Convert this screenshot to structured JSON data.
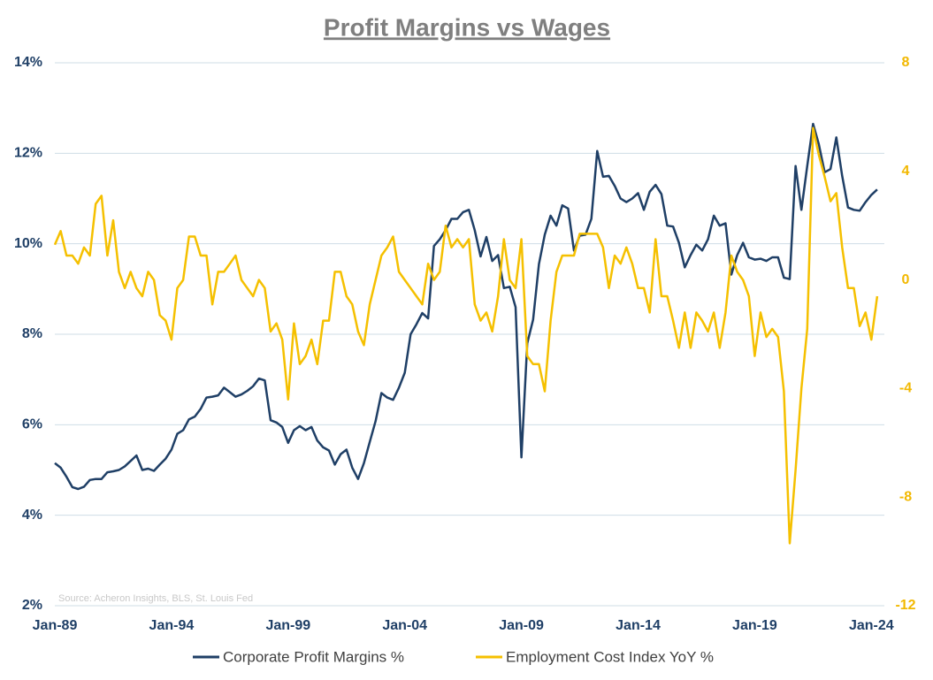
{
  "chart_data": {
    "type": "line",
    "title": "Profit Margins vs Wages",
    "source": "Source: Acheron Insights, BLS, St. Louis Fed",
    "categories": [
      "Jan-89",
      null,
      null,
      null,
      null,
      null,
      null,
      null,
      null,
      null,
      null,
      null,
      null,
      null,
      null,
      null,
      null,
      null,
      null,
      null,
      "Jan-94",
      null,
      null,
      null,
      null,
      null,
      null,
      null,
      null,
      null,
      null,
      null,
      null,
      null,
      null,
      null,
      null,
      null,
      null,
      null,
      "Jan-99",
      null,
      null,
      null,
      null,
      null,
      null,
      null,
      null,
      null,
      null,
      null,
      null,
      null,
      null,
      null,
      null,
      null,
      null,
      null,
      "Jan-04",
      null,
      null,
      null,
      null,
      null,
      null,
      null,
      null,
      null,
      null,
      null,
      null,
      null,
      null,
      null,
      null,
      null,
      null,
      null,
      "Jan-09",
      null,
      null,
      null,
      null,
      null,
      null,
      null,
      null,
      null,
      null,
      null,
      null,
      null,
      null,
      null,
      null,
      null,
      null,
      null,
      "Jan-14",
      null,
      null,
      null,
      null,
      null,
      null,
      null,
      null,
      null,
      null,
      null,
      null,
      null,
      null,
      null,
      null,
      null,
      null,
      null,
      "Jan-19",
      null,
      null,
      null,
      null,
      null,
      null,
      null,
      null,
      null,
      null,
      null,
      null,
      null,
      null,
      null,
      null,
      null,
      null,
      null,
      "Jan-24",
      null
    ],
    "series": [
      {
        "name": "Corporate Profit Margins %",
        "color": "#1f3f66",
        "axis": "y",
        "values": [
          5.15,
          5.05,
          4.85,
          4.62,
          4.58,
          4.63,
          4.78,
          4.8,
          4.8,
          4.95,
          4.97,
          5.0,
          5.08,
          5.2,
          5.32,
          5.0,
          5.03,
          4.98,
          5.12,
          5.25,
          5.45,
          5.8,
          5.88,
          6.12,
          6.18,
          6.35,
          6.6,
          6.62,
          6.65,
          6.82,
          6.72,
          6.62,
          6.67,
          6.75,
          6.85,
          7.02,
          6.98,
          6.1,
          6.05,
          5.95,
          5.6,
          5.88,
          5.97,
          5.88,
          5.95,
          5.65,
          5.5,
          5.43,
          5.12,
          5.35,
          5.45,
          5.05,
          4.8,
          5.15,
          5.62,
          6.08,
          6.7,
          6.6,
          6.55,
          6.82,
          7.15,
          8.0,
          8.22,
          8.47,
          8.35,
          9.95,
          10.1,
          10.3,
          10.55,
          10.55,
          10.7,
          10.75,
          10.3,
          9.72,
          10.15,
          9.62,
          9.75,
          9.02,
          9.05,
          8.6,
          5.28,
          7.8,
          8.32,
          9.55,
          10.2,
          10.62,
          10.4,
          10.85,
          10.78,
          9.85,
          10.18,
          10.2,
          10.55,
          12.05,
          11.48,
          11.5,
          11.28,
          11.0,
          10.92,
          11.0,
          11.12,
          10.75,
          11.15,
          11.3,
          11.1,
          10.4,
          10.38,
          10.02,
          9.48,
          9.75,
          9.98,
          9.85,
          10.1,
          10.62,
          10.4,
          10.45,
          9.32,
          9.75,
          10.02,
          9.7,
          9.65,
          9.67,
          9.62,
          9.7,
          9.7,
          9.25,
          9.22,
          11.72,
          10.75,
          11.72,
          12.65,
          12.2,
          11.58,
          11.65,
          12.35,
          11.5,
          10.8,
          10.75,
          10.73,
          10.92,
          11.08,
          11.2
        ]
      },
      {
        "name": "Employment Cost Index YoY %",
        "color": "#f5c000",
        "axis": "y2",
        "values": [
          1.3,
          1.8,
          0.9,
          0.9,
          0.6,
          1.2,
          0.9,
          2.8,
          3.1,
          0.9,
          2.2,
          0.3,
          -0.3,
          0.3,
          -0.3,
          -0.6,
          0.3,
          0.0,
          -1.3,
          -1.5,
          -2.2,
          -0.3,
          0.0,
          1.6,
          1.6,
          0.9,
          0.9,
          -0.9,
          0.3,
          0.3,
          0.6,
          0.9,
          0.0,
          -0.3,
          -0.6,
          0.0,
          -0.3,
          -1.9,
          -1.6,
          -2.2,
          -4.4,
          -1.6,
          -3.1,
          -2.8,
          -2.2,
          -3.1,
          -1.5,
          -1.5,
          0.3,
          0.3,
          -0.6,
          -0.9,
          -1.9,
          -2.4,
          -0.9,
          0.0,
          0.9,
          1.2,
          1.6,
          0.3,
          0.0,
          -0.3,
          -0.6,
          -0.9,
          0.6,
          0.0,
          0.3,
          2.0,
          1.2,
          1.5,
          1.2,
          1.5,
          -0.9,
          -1.5,
          -1.2,
          -1.9,
          -0.6,
          1.5,
          0.0,
          -0.3,
          1.5,
          -2.8,
          -3.1,
          -3.1,
          -4.1,
          -1.5,
          0.3,
          0.9,
          0.9,
          0.9,
          1.7,
          1.7,
          1.7,
          1.7,
          1.2,
          -0.3,
          0.9,
          0.6,
          1.2,
          0.6,
          -0.3,
          -0.3,
          -1.2,
          1.5,
          -0.6,
          -0.6,
          -1.5,
          -2.5,
          -1.2,
          -2.5,
          -1.2,
          -1.5,
          -1.9,
          -1.2,
          -2.5,
          -1.2,
          0.9,
          0.3,
          0.0,
          -0.6,
          -2.8,
          -1.2,
          -2.1,
          -1.8,
          -2.1,
          -4.1,
          -9.7,
          -7.0,
          -4.0,
          -1.8,
          5.6,
          4.6,
          3.8,
          2.9,
          3.2,
          1.2,
          -0.3,
          -0.3,
          -1.7,
          -1.2,
          -2.2,
          -0.6
        ]
      }
    ],
    "ylim": [
      2,
      14
    ],
    "yticks": [
      {
        "value": 2,
        "label": "2%"
      },
      {
        "value": 4,
        "label": "4%"
      },
      {
        "value": 6,
        "label": "6%"
      },
      {
        "value": 8,
        "label": "8%"
      },
      {
        "value": 10,
        "label": "10%"
      },
      {
        "value": 12,
        "label": "12%"
      },
      {
        "value": 14,
        "label": "14%"
      }
    ],
    "y2lim": [
      -12,
      8
    ],
    "y2ticks": [
      -12,
      -8,
      -4,
      0,
      4,
      8
    ],
    "grid": true
  }
}
